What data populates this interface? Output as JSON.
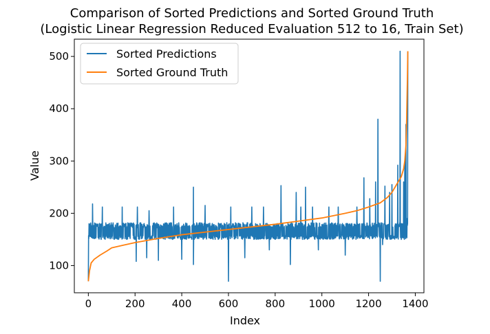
{
  "chart_data": {
    "type": "line",
    "title": "Comparison of Sorted Predictions and Sorted Ground Truth",
    "subtitle": "(Logistic Linear Regression Reduced Evaluation 512 to 16, Train Set)",
    "xlabel": "Index",
    "ylabel": "Value",
    "xlim": [
      -60,
      1437
    ],
    "ylim": [
      48,
      533
    ],
    "xticks": [
      0,
      200,
      400,
      600,
      800,
      1000,
      1200,
      1400
    ],
    "yticks": [
      100,
      200,
      300,
      400,
      500
    ],
    "grid": false,
    "legend_position": "top-left",
    "series": [
      {
        "name": "Sorted Predictions",
        "color": "#1f77b4",
        "base_range": [
          150,
          182
        ],
        "spike_points": [
          {
            "x": 0,
            "y": 70
          },
          {
            "x": 3,
            "y": 180
          },
          {
            "x": 18,
            "y": 218
          },
          {
            "x": 60,
            "y": 212
          },
          {
            "x": 145,
            "y": 212
          },
          {
            "x": 205,
            "y": 108
          },
          {
            "x": 210,
            "y": 212
          },
          {
            "x": 250,
            "y": 115
          },
          {
            "x": 260,
            "y": 205
          },
          {
            "x": 300,
            "y": 110
          },
          {
            "x": 365,
            "y": 212
          },
          {
            "x": 400,
            "y": 112
          },
          {
            "x": 450,
            "y": 250
          },
          {
            "x": 450,
            "y": 102
          },
          {
            "x": 500,
            "y": 215
          },
          {
            "x": 600,
            "y": 70
          },
          {
            "x": 610,
            "y": 212
          },
          {
            "x": 670,
            "y": 115
          },
          {
            "x": 700,
            "y": 212
          },
          {
            "x": 750,
            "y": 212
          },
          {
            "x": 775,
            "y": 130
          },
          {
            "x": 825,
            "y": 253
          },
          {
            "x": 865,
            "y": 102
          },
          {
            "x": 890,
            "y": 240
          },
          {
            "x": 910,
            "y": 212
          },
          {
            "x": 930,
            "y": 250
          },
          {
            "x": 960,
            "y": 212
          },
          {
            "x": 985,
            "y": 130
          },
          {
            "x": 1030,
            "y": 212
          },
          {
            "x": 1070,
            "y": 212
          },
          {
            "x": 1100,
            "y": 120
          },
          {
            "x": 1150,
            "y": 212
          },
          {
            "x": 1180,
            "y": 268
          },
          {
            "x": 1205,
            "y": 228
          },
          {
            "x": 1230,
            "y": 260
          },
          {
            "x": 1240,
            "y": 380
          },
          {
            "x": 1250,
            "y": 70
          },
          {
            "x": 1260,
            "y": 140
          },
          {
            "x": 1270,
            "y": 252
          },
          {
            "x": 1290,
            "y": 240
          },
          {
            "x": 1300,
            "y": 255
          },
          {
            "x": 1315,
            "y": 180
          },
          {
            "x": 1325,
            "y": 292
          },
          {
            "x": 1335,
            "y": 510
          },
          {
            "x": 1340,
            "y": 150
          },
          {
            "x": 1350,
            "y": 260
          },
          {
            "x": 1355,
            "y": 300
          },
          {
            "x": 1360,
            "y": 370
          },
          {
            "x": 1365,
            "y": 190
          },
          {
            "x": 1368,
            "y": 510
          }
        ]
      },
      {
        "name": "Sorted Ground Truth",
        "color": "#ff7f0e",
        "x": [
          0,
          5,
          12,
          25,
          50,
          80,
          100,
          150,
          200,
          300,
          400,
          500,
          600,
          700,
          800,
          900,
          1000,
          1100,
          1150,
          1200,
          1250,
          1280,
          1300,
          1320,
          1340,
          1350,
          1355,
          1360,
          1363,
          1366,
          1368
        ],
        "y": [
          70,
          90,
          105,
          112,
          120,
          128,
          134,
          139,
          144,
          152,
          159,
          164,
          169,
          174,
          179,
          185,
          191,
          200,
          205,
          212,
          220,
          230,
          240,
          255,
          270,
          285,
          300,
          330,
          380,
          450,
          510
        ]
      }
    ]
  }
}
